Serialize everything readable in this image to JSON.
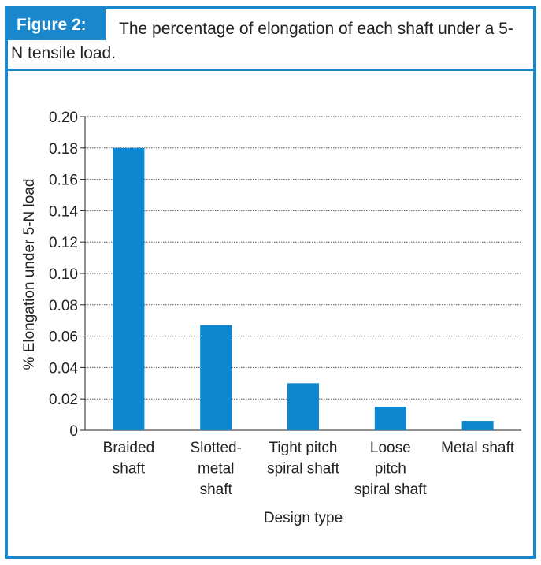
{
  "header": {
    "figure_label": "Figure 2:",
    "caption": "The percentage of elongation of each shaft under a 5-N tensile load."
  },
  "colors": {
    "accent": "#1a87cc",
    "bar": "#0e86d0",
    "grid": "#555555"
  },
  "chart_data": {
    "type": "bar",
    "title": "The percentage of elongation of each shaft under a 5-N tensile load.",
    "categories": [
      [
        "Braided",
        "shaft"
      ],
      [
        "Slotted-",
        "metal",
        "shaft"
      ],
      [
        "Tight pitch",
        "spiral shaft"
      ],
      [
        "Loose",
        "pitch",
        "spiral shaft"
      ],
      [
        "Metal shaft"
      ]
    ],
    "values": [
      0.18,
      0.067,
      0.03,
      0.015,
      0.006
    ],
    "xlabel": "Design type",
    "ylabel": "% Elongation under 5-N load",
    "ylim": [
      0,
      0.2
    ],
    "yticks": [
      "0",
      "0.02",
      "0.04",
      "0.06",
      "0.08",
      "0.10",
      "0.12",
      "0.14",
      "0.16",
      "0.18",
      "0.20"
    ],
    "grid": true,
    "legend": "none"
  }
}
